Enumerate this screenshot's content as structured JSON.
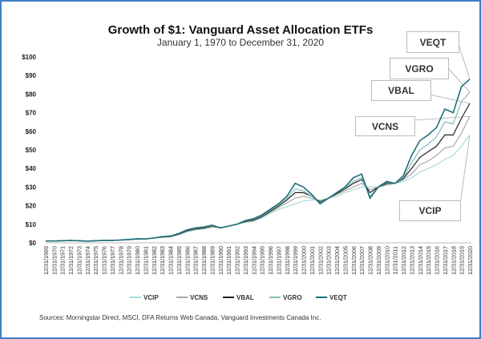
{
  "chart_data": {
    "type": "line",
    "title": "Growth of $1: Vanguard Asset Allocation ETFs",
    "subtitle": "January 1, 1970 to December 31, 2020",
    "xlabel": "",
    "ylabel": "",
    "ylim": [
      0,
      100
    ],
    "yticks": [
      "$0",
      "$10",
      "$20",
      "$30",
      "$40",
      "$50",
      "$60",
      "$70",
      "$80",
      "$90",
      "$100"
    ],
    "x": [
      "12/31/1969",
      "12/31/1970",
      "12/31/1971",
      "12/31/1972",
      "12/31/1973",
      "12/31/1974",
      "12/31/1975",
      "12/31/1976",
      "12/31/1977",
      "12/31/1978",
      "12/31/1979",
      "12/31/1980",
      "12/31/1981",
      "12/31/1982",
      "12/31/1983",
      "12/31/1984",
      "12/31/1985",
      "12/31/1986",
      "12/31/1987",
      "12/31/1988",
      "12/31/1989",
      "12/31/1990",
      "12/31/1991",
      "12/31/1992",
      "12/31/1993",
      "12/31/1994",
      "12/31/1995",
      "12/31/1996",
      "12/31/1997",
      "12/31/1998",
      "12/31/1999",
      "12/31/2000",
      "12/31/2001",
      "12/31/2002",
      "12/31/2003",
      "12/31/2004",
      "12/31/2005",
      "12/31/2006",
      "12/31/2007",
      "12/31/2008",
      "12/31/2009",
      "12/31/2010",
      "12/31/2011",
      "12/31/2012",
      "12/31/2013",
      "12/31/2014",
      "12/31/2015",
      "12/31/2016",
      "12/31/2017",
      "12/31/2018",
      "12/31/2019",
      "12/31/2020"
    ],
    "grid": false,
    "legend": "bottom",
    "series": [
      {
        "name": "VCIP",
        "color": "#a9dbd8",
        "values": [
          1,
          1,
          1.1,
          1.2,
          1.1,
          1,
          1.1,
          1.3,
          1.3,
          1.4,
          1.6,
          1.9,
          2.1,
          2.5,
          2.9,
          3.2,
          4.3,
          5.9,
          6.9,
          7.4,
          8.3,
          8.3,
          9,
          10,
          11,
          11.5,
          13.3,
          15.8,
          18,
          19.5,
          21,
          22.5,
          23,
          23,
          24,
          25,
          27,
          28.5,
          30,
          30,
          30,
          31,
          32,
          33,
          35,
          38,
          40,
          42,
          45,
          47,
          52,
          58
        ]
      },
      {
        "name": "VCNS",
        "color": "#a8a8a8",
        "values": [
          1,
          1,
          1.1,
          1.2,
          1.1,
          1,
          1.1,
          1.3,
          1.3,
          1.5,
          1.7,
          2,
          2.1,
          2.6,
          3,
          3.3,
          4.5,
          6.2,
          7.2,
          7.7,
          8.6,
          8.2,
          9,
          10,
          11.2,
          11.9,
          13.8,
          16.4,
          19,
          21.5,
          24,
          25,
          24,
          22.5,
          24,
          26,
          28,
          30,
          32,
          28.5,
          30,
          31.5,
          32,
          34,
          37,
          42,
          44,
          47,
          51,
          52,
          59,
          68
        ]
      },
      {
        "name": "VBAL",
        "color": "#222222",
        "values": [
          1,
          1,
          1.1,
          1.3,
          1.1,
          0.95,
          1.1,
          1.3,
          1.3,
          1.5,
          1.8,
          2.1,
          2.1,
          2.6,
          3.1,
          3.4,
          4.7,
          6.5,
          7.5,
          8,
          9,
          8,
          9,
          10,
          11.5,
          12.3,
          14.2,
          17,
          19.8,
          23,
          27,
          27,
          25,
          22,
          24,
          26.5,
          29,
          32,
          34,
          27,
          30,
          32,
          32,
          34.5,
          40,
          46,
          49,
          52,
          58,
          58,
          67,
          75
        ]
      },
      {
        "name": "VGRO",
        "color": "#86bdb9",
        "values": [
          1,
          1,
          1.1,
          1.3,
          1.1,
          0.9,
          1.1,
          1.3,
          1.3,
          1.5,
          1.8,
          2.2,
          2.1,
          2.6,
          3.2,
          3.5,
          4.9,
          6.8,
          7.8,
          8.3,
          9.2,
          8,
          9,
          10,
          11.8,
          12.7,
          14.6,
          17.5,
          20.4,
          24,
          29,
          28,
          25,
          21.5,
          24,
          27,
          29.5,
          33,
          35,
          25,
          30,
          32.5,
          32,
          35,
          43,
          50,
          53,
          57,
          65,
          64,
          76,
          81
        ]
      },
      {
        "name": "VEQT",
        "color": "#1d6e78",
        "values": [
          1,
          1,
          1.1,
          1.3,
          1.1,
          0.9,
          1.1,
          1.3,
          1.3,
          1.5,
          1.8,
          2.2,
          2.1,
          2.6,
          3.3,
          3.6,
          5,
          7,
          8,
          8.5,
          9.5,
          8,
          9,
          10,
          12,
          13,
          15,
          18,
          21,
          25,
          32,
          30,
          26,
          21,
          24,
          27,
          30,
          35,
          37,
          24,
          30,
          33,
          32,
          36,
          47,
          55,
          58,
          62,
          72,
          70,
          84,
          88
        ]
      }
    ],
    "annotations": [
      "VEQT",
      "VGRO",
      "VBAL",
      "VCNS",
      "VCIP"
    ]
  },
  "sources": "Sources: Morningstar Direct, MSCI, DFA Returns Web Canada, Vanguard Investments Canada Inc."
}
